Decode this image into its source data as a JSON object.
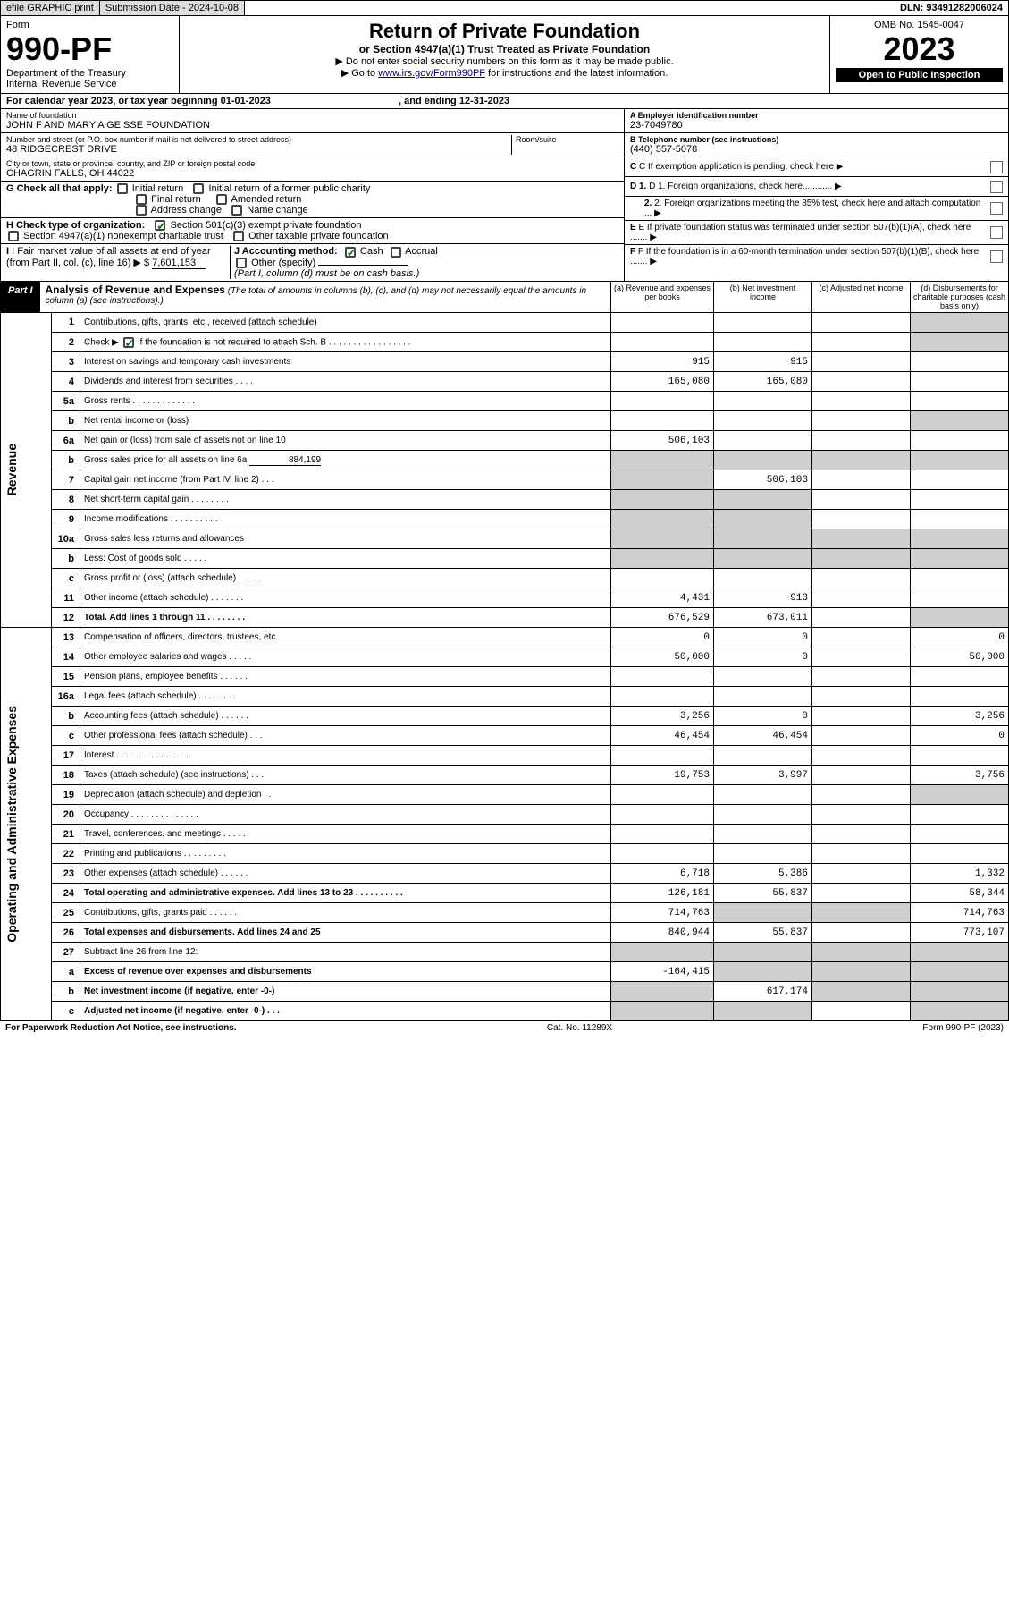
{
  "topbar": {
    "efile": "efile GRAPHIC print",
    "sub_lbl": "Submission Date - 2024-10-08",
    "dln": "DLN: 93491282006024"
  },
  "header": {
    "form_word": "Form",
    "form_no": "990-PF",
    "dept": "Department of the Treasury",
    "irs": "Internal Revenue Service",
    "title": "Return of Private Foundation",
    "subtitle": "or Section 4947(a)(1) Trust Treated as Private Foundation",
    "note1": "▶ Do not enter social security numbers on this form as it may be made public.",
    "note2_pre": "▶ Go to ",
    "note2_link": "www.irs.gov/Form990PF",
    "note2_post": " for instructions and the latest information.",
    "omb": "OMB No. 1545-0047",
    "year": "2023",
    "open": "Open to Public Inspection"
  },
  "calyear": {
    "text_a": "For calendar year 2023, or tax year beginning ",
    "begin": "01-01-2023",
    "text_b": ", and ending ",
    "end": "12-31-2023"
  },
  "id": {
    "name_lbl": "Name of foundation",
    "name": "JOHN F AND MARY A GEISSE FOUNDATION",
    "addr_lbl": "Number and street (or P.O. box number if mail is not delivered to street address)",
    "addr": "48 RIDGECREST DRIVE",
    "room_lbl": "Room/suite",
    "city_lbl": "City or town, state or province, country, and ZIP or foreign postal code",
    "city": "CHAGRIN FALLS, OH  44022",
    "ein_lbl": "A Employer identification number",
    "ein": "23-7049780",
    "tel_lbl": "B Telephone number (see instructions)",
    "tel": "(440) 557-5078",
    "c": "C If exemption application is pending, check here",
    "d1": "D 1. Foreign organizations, check here............",
    "d2": "2. Foreign organizations meeting the 85% test, check here and attach computation ...",
    "e": "E If private foundation status was terminated under section 507(b)(1)(A), check here .......",
    "f": "F If the foundation is in a 60-month termination under section 507(b)(1)(B), check here .......",
    "g_lbl": "G Check all that apply:",
    "g": {
      "initial": "Initial return",
      "initial_former": "Initial return of a former public charity",
      "final": "Final return",
      "amended": "Amended return",
      "addr_chg": "Address change",
      "name_chg": "Name change"
    },
    "h_lbl": "H Check type of organization:",
    "h": {
      "s501": "Section 501(c)(3) exempt private foundation",
      "s4947": "Section 4947(a)(1) nonexempt charitable trust",
      "other_tax": "Other taxable private foundation"
    },
    "i_lbl": "I Fair market value of all assets at end of year (from Part II, col. (c), line 16)",
    "i_val": "7,601,153",
    "j_lbl": "J Accounting method:",
    "j": {
      "cash": "Cash",
      "accrual": "Accrual",
      "other": "Other (specify)",
      "note": "(Part I, column (d) must be on cash basis.)"
    }
  },
  "part1": {
    "label": "Part I",
    "title": "Analysis of Revenue and Expenses",
    "title_note": "(The total of amounts in columns (b), (c), and (d) may not necessarily equal the amounts in column (a) (see instructions).)",
    "cols": {
      "a": "(a) Revenue and expenses per books",
      "b": "(b) Net investment income",
      "c": "(c) Adjusted net income",
      "d": "(d) Disbursements for charitable purposes (cash basis only)"
    }
  },
  "vlabels": {
    "rev": "Revenue",
    "oae": "Operating and Administrative Expenses"
  },
  "lines": {
    "l1": {
      "n": "1",
      "d": "Contributions, gifts, grants, etc., received (attach schedule)"
    },
    "l2": {
      "n": "2",
      "d": "Check ▶ ",
      "d2": " if the foundation is not required to attach Sch. B  . . . . . . . . . . . . . . . . ."
    },
    "l3": {
      "n": "3",
      "d": "Interest on savings and temporary cash investments",
      "a": "915",
      "b": "915"
    },
    "l4": {
      "n": "4",
      "d": "Dividends and interest from securities  . . . .",
      "a": "165,080",
      "b": "165,080"
    },
    "l5a": {
      "n": "5a",
      "d": "Gross rents  . . . . . . . . . . . . ."
    },
    "l5b": {
      "n": "b",
      "d": "Net rental income or (loss)"
    },
    "l6a": {
      "n": "6a",
      "d": "Net gain or (loss) from sale of assets not on line 10",
      "a": "506,103"
    },
    "l6b": {
      "n": "b",
      "d": "Gross sales price for all assets on line 6a",
      "v": "884,199"
    },
    "l7": {
      "n": "7",
      "d": "Capital gain net income (from Part IV, line 2)  . . .",
      "b": "506,103"
    },
    "l8": {
      "n": "8",
      "d": "Net short-term capital gain  . . . . . . . ."
    },
    "l9": {
      "n": "9",
      "d": "Income modifications  . . . . . . . . . ."
    },
    "l10a": {
      "n": "10a",
      "d": "Gross sales less returns and allowances"
    },
    "l10b": {
      "n": "b",
      "d": "Less: Cost of goods sold  . . . . ."
    },
    "l10c": {
      "n": "c",
      "d": "Gross profit or (loss) (attach schedule)  . . . . ."
    },
    "l11": {
      "n": "11",
      "d": "Other income (attach schedule)  . . . . . . .",
      "a": "4,431",
      "b": "913"
    },
    "l12": {
      "n": "12",
      "d": "Total. Add lines 1 through 11  . . . . . . . .",
      "a": "676,529",
      "b": "673,011",
      "bold": true
    },
    "l13": {
      "n": "13",
      "d": "Compensation of officers, directors, trustees, etc.",
      "a": "0",
      "b": "0",
      "dd": "0"
    },
    "l14": {
      "n": "14",
      "d": "Other employee salaries and wages  . . . . .",
      "a": "50,000",
      "b": "0",
      "dd": "50,000"
    },
    "l15": {
      "n": "15",
      "d": "Pension plans, employee benefits  . . . . . ."
    },
    "l16a": {
      "n": "16a",
      "d": "Legal fees (attach schedule)  . . . . . . . ."
    },
    "l16b": {
      "n": "b",
      "d": "Accounting fees (attach schedule)  . . . . . .",
      "a": "3,256",
      "b": "0",
      "dd": "3,256"
    },
    "l16c": {
      "n": "c",
      "d": "Other professional fees (attach schedule)  . . .",
      "a": "46,454",
      "b": "46,454",
      "dd": "0"
    },
    "l17": {
      "n": "17",
      "d": "Interest  . . . . . . . . . . . . . . ."
    },
    "l18": {
      "n": "18",
      "d": "Taxes (attach schedule) (see instructions)  . . .",
      "a": "19,753",
      "b": "3,997",
      "dd": "3,756"
    },
    "l19": {
      "n": "19",
      "d": "Depreciation (attach schedule) and depletion  . ."
    },
    "l20": {
      "n": "20",
      "d": "Occupancy  . . . . . . . . . . . . . ."
    },
    "l21": {
      "n": "21",
      "d": "Travel, conferences, and meetings  . . . . ."
    },
    "l22": {
      "n": "22",
      "d": "Printing and publications  . . . . . . . . ."
    },
    "l23": {
      "n": "23",
      "d": "Other expenses (attach schedule)  . . . . . .",
      "a": "6,718",
      "b": "5,386",
      "dd": "1,332"
    },
    "l24": {
      "n": "24",
      "d": "Total operating and administrative expenses. Add lines 13 to 23  . . . . . . . . . .",
      "a": "126,181",
      "b": "55,837",
      "dd": "58,344",
      "bold": true
    },
    "l25": {
      "n": "25",
      "d": "Contributions, gifts, grants paid  . . . . . .",
      "a": "714,763",
      "dd": "714,763"
    },
    "l26": {
      "n": "26",
      "d": "Total expenses and disbursements. Add lines 24 and 25",
      "a": "840,944",
      "b": "55,837",
      "dd": "773,107",
      "bold": true
    },
    "l27": {
      "n": "27",
      "d": "Subtract line 26 from line 12:"
    },
    "l27a": {
      "n": "a",
      "d": "Excess of revenue over expenses and disbursements",
      "a": "-164,415",
      "bold": true
    },
    "l27b": {
      "n": "b",
      "d": "Net investment income (if negative, enter -0-)",
      "b": "617,174",
      "bold": true
    },
    "l27c": {
      "n": "c",
      "d": "Adjusted net income (if negative, enter -0-)  . . .",
      "bold": true
    }
  },
  "footer": {
    "pra": "For Paperwork Reduction Act Notice, see instructions.",
    "cat": "Cat. No. 11289X",
    "form": "Form 990-PF (2023)"
  }
}
